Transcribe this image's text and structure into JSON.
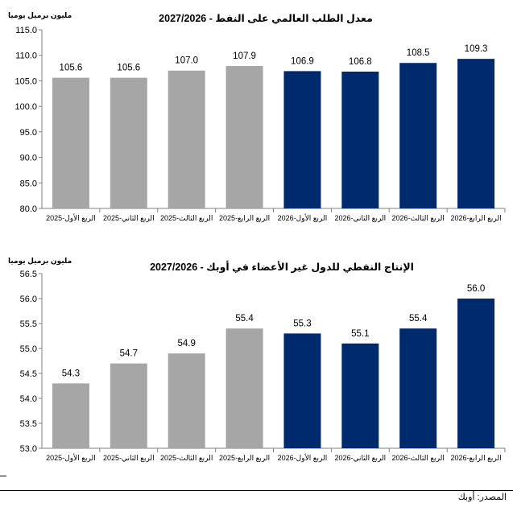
{
  "charts": [
    {
      "title": "معدل الطلب العالمي على النفط - 2027/2026",
      "unit_label": "مليون برميل يوميا"
    },
    {
      "title": "الإنتاج النفطي للدول غير الأعضاء في أوبك -  2027/2026",
      "unit_label": "مليون برميل يوميا"
    }
  ],
  "source": "المصدر: أوبك",
  "colors": {
    "past": "#a6a6a6",
    "forecast": "#002a6e",
    "axis": "#808080"
  },
  "chart_data": [
    {
      "type": "bar",
      "title": "معدل الطلب العالمي على النفط - 2027/2026",
      "ylabel": "مليون برميل يوميا",
      "categories": [
        "الربع الأول-2025",
        "الربع الثاني-2025",
        "الربع الثالث-2025",
        "الربع الرابع-2025",
        "الربع الأول-2026",
        "الربع الثاني-2026",
        "الربع الثالث-2026",
        "الربع الرابع-2026"
      ],
      "values": [
        105.6,
        105.6,
        107.0,
        107.9,
        106.9,
        106.8,
        108.5,
        109.3
      ],
      "value_labels": [
        "105.6",
        "105.6",
        "107.0",
        "107.9",
        "106.9",
        "106.8",
        "108.5",
        "109.3"
      ],
      "ylim": [
        80,
        115
      ],
      "yticks": [
        "80.0",
        "85.0",
        "90.0",
        "95.0",
        "100.0",
        "105.0",
        "110.0",
        "115.0"
      ],
      "forecast_start_index": 4,
      "grid": false
    },
    {
      "type": "bar",
      "title": "الإنتاج النفطي للدول غير الأعضاء في أوبك -  2027/2026",
      "ylabel": "مليون برميل يوميا",
      "categories": [
        "الربع الأول-2025",
        "الربع الثاني-2025",
        "الربع الثالث-2025",
        "الربع الرابع-2025",
        "الربع الأول-2026",
        "الربع الثاني-2026",
        "الربع الثالث-2026",
        "الربع الرابع-2026"
      ],
      "values": [
        54.3,
        54.7,
        54.9,
        55.4,
        55.3,
        55.1,
        55.4,
        56.0
      ],
      "value_labels": [
        "54.3",
        "54.7",
        "54.9",
        "55.4",
        "55.3",
        "55.1",
        "55.4",
        "56.0"
      ],
      "ylim": [
        53,
        56.5
      ],
      "yticks": [
        "53.0",
        "53.5",
        "54.0",
        "54.5",
        "55.0",
        "55.5",
        "56.0",
        "56.5"
      ],
      "forecast_start_index": 4,
      "grid": false
    }
  ]
}
